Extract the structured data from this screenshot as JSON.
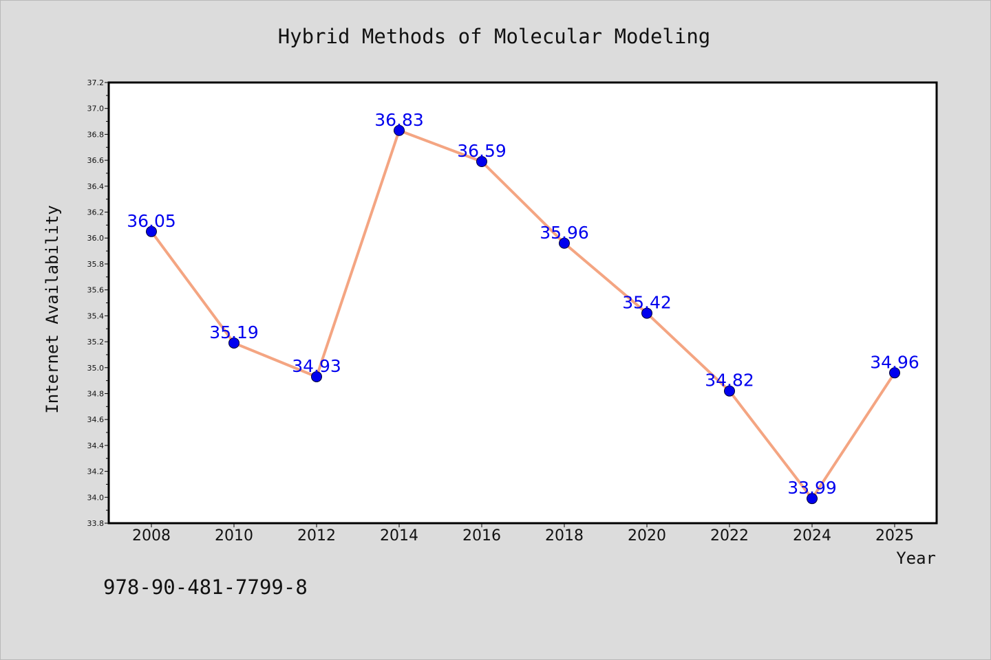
{
  "chart_data": {
    "type": "line",
    "title": "Hybrid Methods of Molecular Modeling",
    "xlabel": "Year",
    "ylabel": "Internet Availability",
    "categories": [
      "2008",
      "2010",
      "2012",
      "2014",
      "2016",
      "2018",
      "2020",
      "2022",
      "2024",
      "2025"
    ],
    "series": [
      {
        "values": [
          36.05,
          35.19,
          34.93,
          36.83,
          36.59,
          35.96,
          35.42,
          34.82,
          33.99,
          34.96
        ],
        "value_labels": [
          "36.05",
          "35.19",
          "34.93",
          "36.83",
          "36.59",
          "35.96",
          "35.42",
          "34.82",
          "33.99",
          "34.96"
        ]
      }
    ],
    "ylim": [
      33.8,
      37.2
    ],
    "yticks": [
      "33.8",
      "34.0",
      "34.2",
      "34.4",
      "34.6",
      "34.8",
      "35.0",
      "35.2",
      "35.4",
      "35.6",
      "35.8",
      "36.0",
      "36.2",
      "36.4",
      "36.6",
      "36.8",
      "37.0",
      "37.2"
    ],
    "grid": false,
    "legend": "none",
    "line_color": "#f4a582",
    "marker_color": "#0000ee",
    "label_color": "#0000ee"
  },
  "footer": {
    "isbn": "978-90-481-7799-8"
  }
}
